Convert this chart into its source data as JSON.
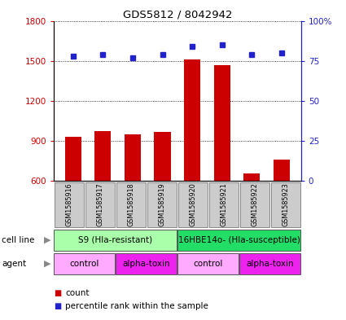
{
  "title": "GDS5812 / 8042942",
  "samples": [
    "GSM1585916",
    "GSM1585917",
    "GSM1585918",
    "GSM1585919",
    "GSM1585920",
    "GSM1585921",
    "GSM1585922",
    "GSM1585923"
  ],
  "counts": [
    930,
    970,
    950,
    965,
    1510,
    1465,
    655,
    760
  ],
  "percentiles": [
    78,
    79,
    77,
    79,
    84,
    85,
    79,
    80
  ],
  "ylim_left": [
    600,
    1800
  ],
  "ylim_right": [
    0,
    100
  ],
  "yticks_left": [
    600,
    900,
    1200,
    1500,
    1800
  ],
  "yticks_right": [
    0,
    25,
    50,
    75,
    100
  ],
  "bar_color": "#cc0000",
  "dot_color": "#2222cc",
  "cell_line_groups": [
    {
      "label": "S9 (Hla-resistant)",
      "start": 0,
      "end": 3,
      "color": "#aaffaa"
    },
    {
      "label": "16HBE14o- (Hla-susceptible)",
      "start": 4,
      "end": 7,
      "color": "#22dd66"
    }
  ],
  "agent_groups": [
    {
      "label": "control",
      "start": 0,
      "end": 1,
      "color": "#ffaaff"
    },
    {
      "label": "alpha-toxin",
      "start": 2,
      "end": 3,
      "color": "#ee22ee"
    },
    {
      "label": "control",
      "start": 4,
      "end": 5,
      "color": "#ffaaff"
    },
    {
      "label": "alpha-toxin",
      "start": 6,
      "end": 7,
      "color": "#ee22ee"
    }
  ],
  "legend_items": [
    {
      "label": "count",
      "color": "#cc0000"
    },
    {
      "label": "percentile rank within the sample",
      "color": "#2222cc"
    }
  ],
  "tick_color_left": "#cc0000",
  "tick_color_right": "#2222cc",
  "sample_box_color": "#cccccc",
  "sample_box_edge": "#888888"
}
